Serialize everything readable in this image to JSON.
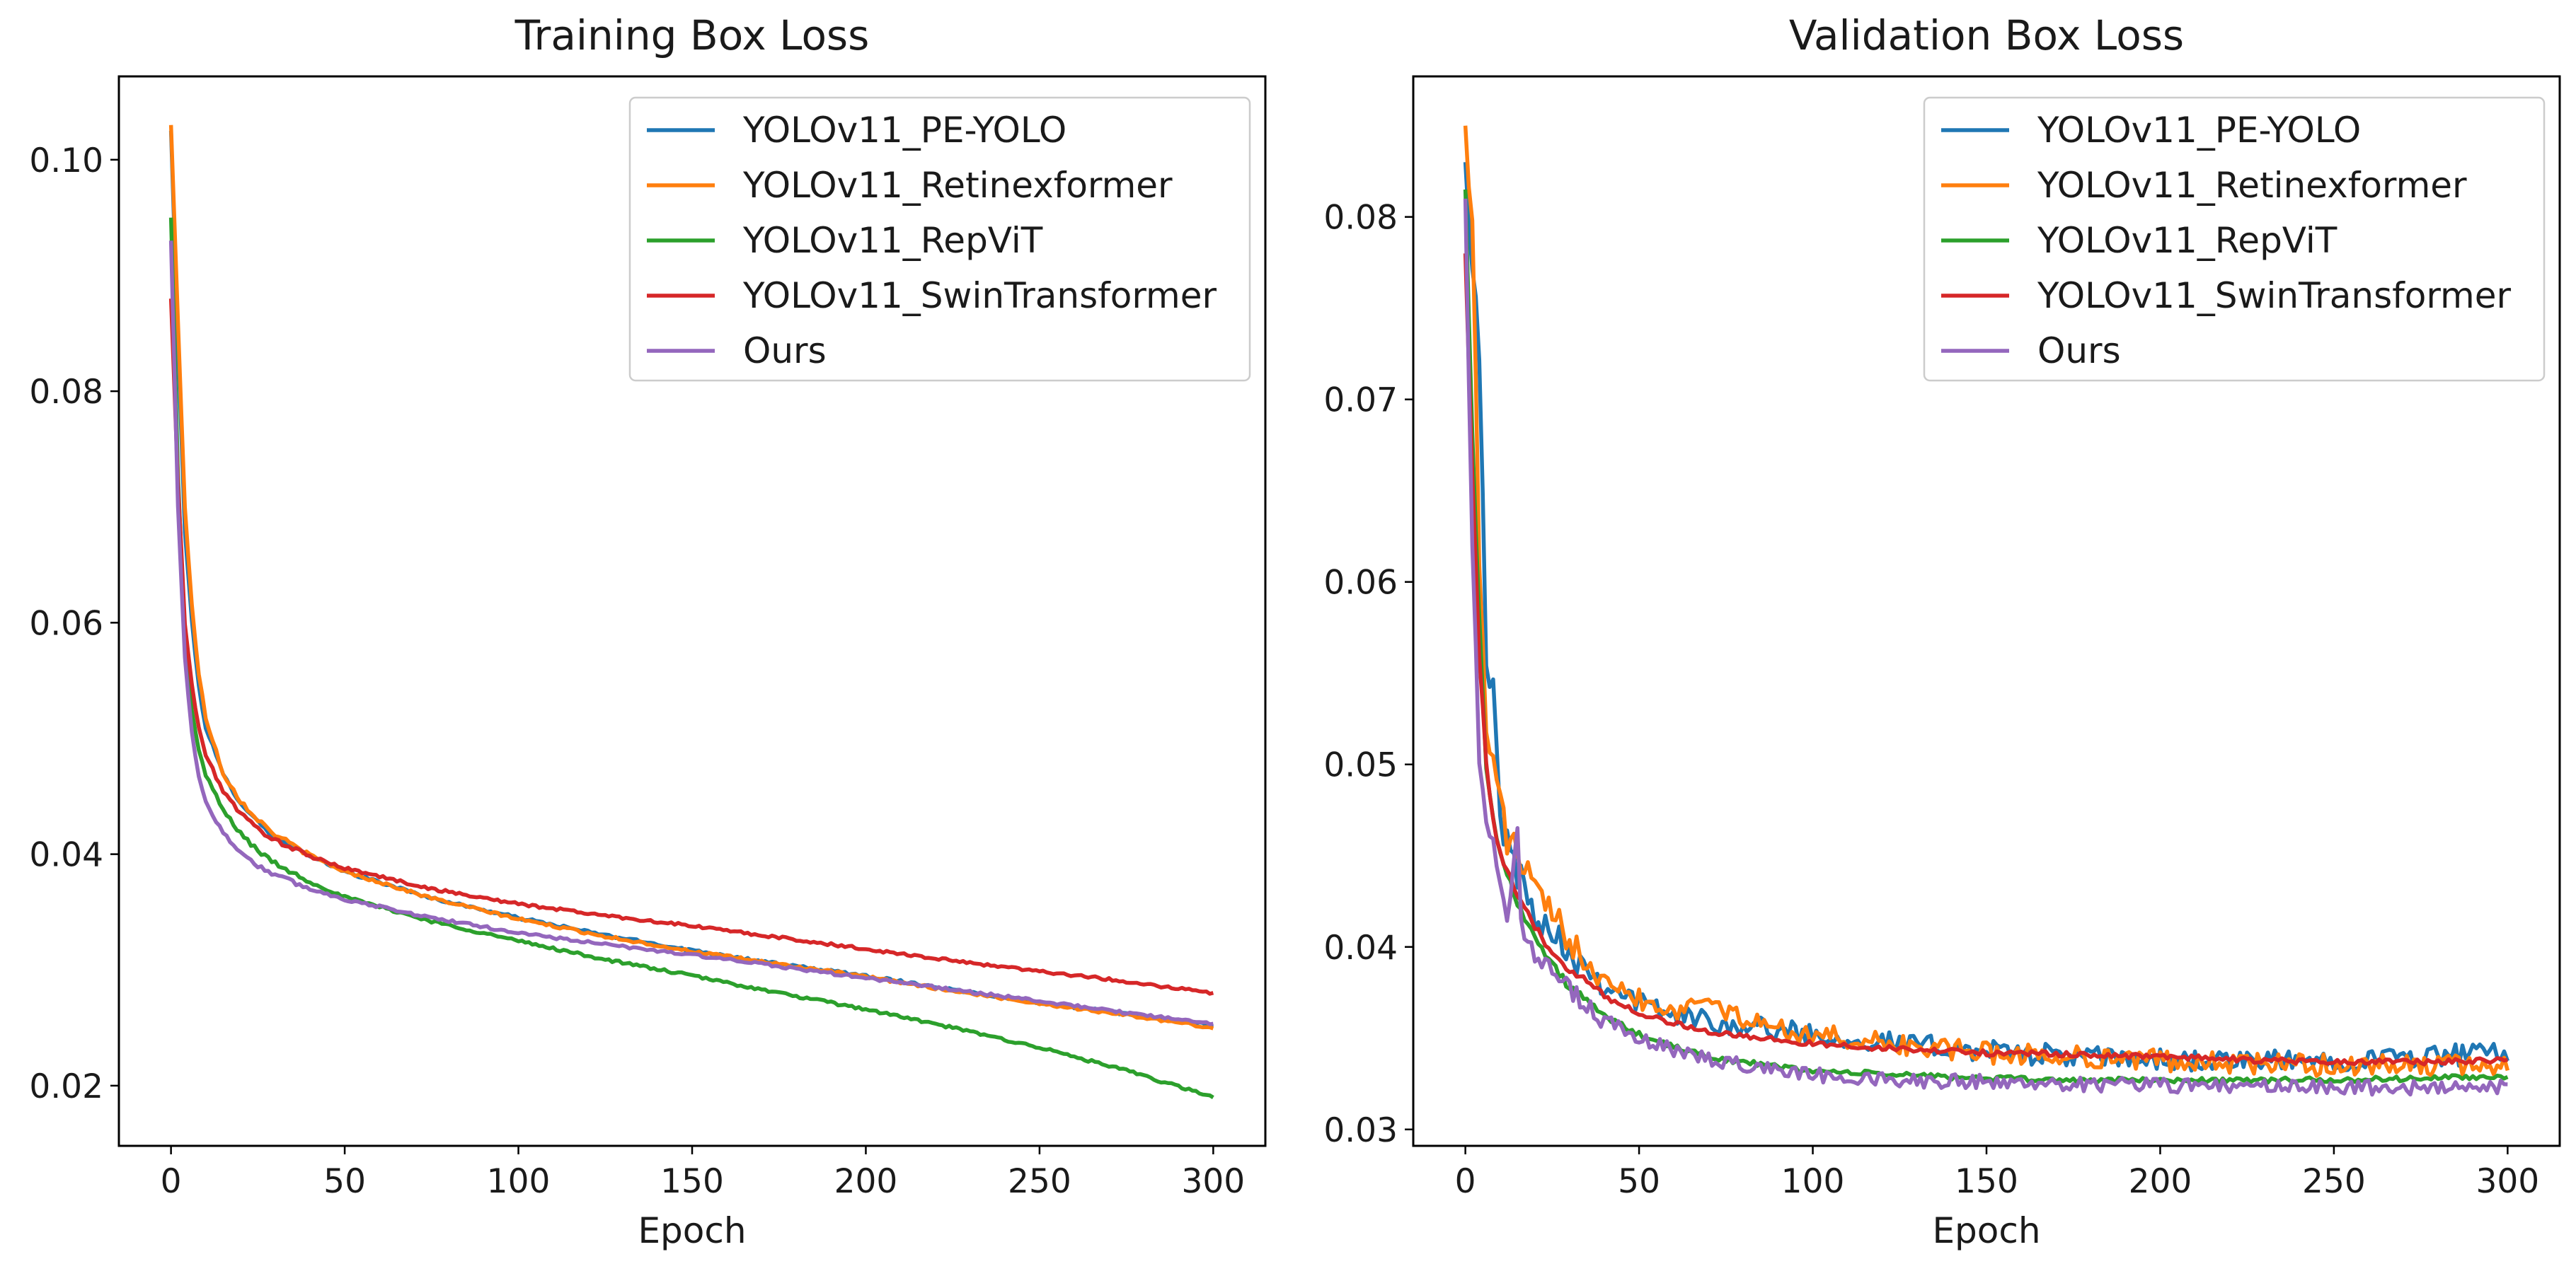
{
  "chart_data": [
    {
      "type": "line",
      "title": "Training Box Loss",
      "xlabel": "Epoch",
      "ylabel": "",
      "xlim": [
        -15,
        315
      ],
      "ylim": [
        0.0148,
        0.1072
      ],
      "xticks": [
        "0",
        "50",
        "100",
        "150",
        "200",
        "250",
        "300"
      ],
      "yticks": [
        "0.02",
        "0.04",
        "0.06",
        "0.08",
        "0.10"
      ],
      "legend": "top-right",
      "series": [
        {
          "name": "YOLOv11_PE-YOLO",
          "color": "#1f77b4",
          "noise": 0.00012,
          "points": [
            [
              0,
              0.1025
            ],
            [
              2,
              0.084
            ],
            [
              4,
              0.068
            ],
            [
              6,
              0.06
            ],
            [
              8,
              0.0545
            ],
            [
              10,
              0.051
            ],
            [
              15,
              0.0468
            ],
            [
              20,
              0.0445
            ],
            [
              25,
              0.0428
            ],
            [
              30,
              0.0415
            ],
            [
              40,
              0.0398
            ],
            [
              50,
              0.0385
            ],
            [
              75,
              0.0362
            ],
            [
              100,
              0.0345
            ],
            [
              125,
              0.033
            ],
            [
              150,
              0.0317
            ],
            [
              175,
              0.0305
            ],
            [
              200,
              0.0295
            ],
            [
              225,
              0.0283
            ],
            [
              250,
              0.0272
            ],
            [
              275,
              0.0262
            ],
            [
              300,
              0.0252
            ]
          ]
        },
        {
          "name": "YOLOv11_Retinexformer",
          "color": "#ff7f0e",
          "noise": 0.00012,
          "points": [
            [
              0,
              0.103
            ],
            [
              2,
              0.086
            ],
            [
              4,
              0.07
            ],
            [
              6,
              0.0615
            ],
            [
              8,
              0.0555
            ],
            [
              10,
              0.0518
            ],
            [
              15,
              0.047
            ],
            [
              20,
              0.0446
            ],
            [
              25,
              0.043
            ],
            [
              30,
              0.0417
            ],
            [
              40,
              0.0399
            ],
            [
              50,
              0.0385
            ],
            [
              75,
              0.0362
            ],
            [
              100,
              0.0344
            ],
            [
              125,
              0.0329
            ],
            [
              150,
              0.0316
            ],
            [
              175,
              0.0305
            ],
            [
              200,
              0.0294
            ],
            [
              225,
              0.0282
            ],
            [
              250,
              0.0271
            ],
            [
              275,
              0.0261
            ],
            [
              300,
              0.025
            ]
          ]
        },
        {
          "name": "YOLOv11_RepViT",
          "color": "#2ca02c",
          "noise": 0.00012,
          "points": [
            [
              0,
              0.095
            ],
            [
              2,
              0.073
            ],
            [
              4,
              0.058
            ],
            [
              6,
              0.0525
            ],
            [
              8,
              0.049
            ],
            [
              10,
              0.0468
            ],
            [
              15,
              0.0438
            ],
            [
              20,
              0.0418
            ],
            [
              25,
              0.0403
            ],
            [
              30,
              0.0392
            ],
            [
              40,
              0.0376
            ],
            [
              50,
              0.0363
            ],
            [
              75,
              0.0342
            ],
            [
              100,
              0.0325
            ],
            [
              125,
              0.0309
            ],
            [
              150,
              0.0295
            ],
            [
              175,
              0.028
            ],
            [
              200,
              0.0266
            ],
            [
              225,
              0.025
            ],
            [
              250,
              0.0233
            ],
            [
              275,
              0.0213
            ],
            [
              300,
              0.019
            ]
          ]
        },
        {
          "name": "YOLOv11_SwinTransformer",
          "color": "#d62728",
          "noise": 0.00012,
          "points": [
            [
              0,
              0.088
            ],
            [
              2,
              0.072
            ],
            [
              4,
              0.06
            ],
            [
              6,
              0.0545
            ],
            [
              8,
              0.051
            ],
            [
              10,
              0.0485
            ],
            [
              15,
              0.0455
            ],
            [
              20,
              0.0435
            ],
            [
              25,
              0.0422
            ],
            [
              30,
              0.0412
            ],
            [
              40,
              0.0398
            ],
            [
              50,
              0.0388
            ],
            [
              75,
              0.037
            ],
            [
              100,
              0.0357
            ],
            [
              125,
              0.0347
            ],
            [
              150,
              0.0338
            ],
            [
              175,
              0.0328
            ],
            [
              200,
              0.0318
            ],
            [
              225,
              0.0308
            ],
            [
              250,
              0.0299
            ],
            [
              275,
              0.029
            ],
            [
              300,
              0.028
            ]
          ]
        },
        {
          "name": "Ours",
          "color": "#9467bd",
          "noise": 0.00012,
          "points": [
            [
              0,
              0.093
            ],
            [
              2,
              0.07
            ],
            [
              4,
              0.057
            ],
            [
              6,
              0.0505
            ],
            [
              8,
              0.0468
            ],
            [
              10,
              0.0445
            ],
            [
              15,
              0.0418
            ],
            [
              20,
              0.0402
            ],
            [
              25,
              0.039
            ],
            [
              30,
              0.0382
            ],
            [
              40,
              0.037
            ],
            [
              50,
              0.0361
            ],
            [
              75,
              0.0345
            ],
            [
              100,
              0.0332
            ],
            [
              125,
              0.0322
            ],
            [
              150,
              0.0313
            ],
            [
              175,
              0.0303
            ],
            [
              200,
              0.0293
            ],
            [
              225,
              0.0283
            ],
            [
              250,
              0.0273
            ],
            [
              275,
              0.0263
            ],
            [
              300,
              0.0253
            ]
          ]
        }
      ]
    },
    {
      "type": "line",
      "title": "Validation Box Loss",
      "xlabel": "Epoch",
      "ylabel": "",
      "xlim": [
        -15,
        315
      ],
      "ylim": [
        0.0291,
        0.0877
      ],
      "xticks": [
        "0",
        "50",
        "100",
        "150",
        "200",
        "250",
        "300"
      ],
      "yticks": [
        "0.03",
        "0.04",
        "0.05",
        "0.06",
        "0.07",
        "0.08"
      ],
      "legend": "top-right",
      "series": [
        {
          "name": "YOLOv11_PE-YOLO",
          "color": "#1f77b4",
          "noise": 0.0006,
          "points": [
            [
              0,
              0.083
            ],
            [
              2,
              0.078
            ],
            [
              4,
              0.073
            ],
            [
              6,
              0.055
            ],
            [
              8,
              0.054
            ],
            [
              10,
              0.047
            ],
            [
              12,
              0.046
            ],
            [
              15,
              0.044
            ],
            [
              20,
              0.042
            ],
            [
              25,
              0.041
            ],
            [
              30,
              0.0398
            ],
            [
              40,
              0.038
            ],
            [
              50,
              0.037
            ],
            [
              60,
              0.0363
            ],
            [
              75,
              0.0358
            ],
            [
              100,
              0.0352
            ],
            [
              125,
              0.0347
            ],
            [
              150,
              0.0343
            ],
            [
              175,
              0.034
            ],
            [
              200,
              0.0338
            ],
            [
              225,
              0.0337
            ],
            [
              250,
              0.0338
            ],
            [
              275,
              0.034
            ],
            [
              300,
              0.0342
            ]
          ]
        },
        {
          "name": "YOLOv11_Retinexformer",
          "color": "#ff7f0e",
          "noise": 0.0006,
          "points": [
            [
              0,
              0.085
            ],
            [
              2,
              0.08
            ],
            [
              4,
              0.061
            ],
            [
              6,
              0.052
            ],
            [
              8,
              0.05
            ],
            [
              10,
              0.048
            ],
            [
              12,
              0.046
            ],
            [
              15,
              0.045
            ],
            [
              18,
              0.044
            ],
            [
              20,
              0.043
            ],
            [
              25,
              0.0415
            ],
            [
              30,
              0.0405
            ],
            [
              40,
              0.0385
            ],
            [
              50,
              0.0372
            ],
            [
              60,
              0.0365
            ],
            [
              73,
              0.0375
            ],
            [
              75,
              0.0362
            ],
            [
              100,
              0.0352
            ],
            [
              125,
              0.0346
            ],
            [
              150,
              0.0342
            ],
            [
              175,
              0.034
            ],
            [
              200,
              0.0338
            ],
            [
              225,
              0.0336
            ],
            [
              250,
              0.0335
            ],
            [
              275,
              0.0335
            ],
            [
              300,
              0.0335
            ]
          ]
        },
        {
          "name": "YOLOv11_RepViT",
          "color": "#2ca02c",
          "noise": 0.00015,
          "points": [
            [
              0,
              0.0815
            ],
            [
              2,
              0.068
            ],
            [
              4,
              0.058
            ],
            [
              6,
              0.05
            ],
            [
              8,
              0.047
            ],
            [
              10,
              0.045
            ],
            [
              15,
              0.0425
            ],
            [
              20,
              0.0405
            ],
            [
              25,
              0.039
            ],
            [
              30,
              0.0378
            ],
            [
              40,
              0.0362
            ],
            [
              50,
              0.0352
            ],
            [
              60,
              0.0345
            ],
            [
              75,
              0.0338
            ],
            [
              100,
              0.0332
            ],
            [
              125,
              0.033
            ],
            [
              150,
              0.0328
            ],
            [
              175,
              0.0327
            ],
            [
              200,
              0.0327
            ],
            [
              225,
              0.0327
            ],
            [
              250,
              0.0327
            ],
            [
              275,
              0.0328
            ],
            [
              300,
              0.0329
            ]
          ]
        },
        {
          "name": "YOLOv11_SwinTransformer",
          "color": "#d62728",
          "noise": 0.00015,
          "points": [
            [
              0,
              0.078
            ],
            [
              2,
              0.066
            ],
            [
              4,
              0.056
            ],
            [
              6,
              0.05
            ],
            [
              8,
              0.047
            ],
            [
              10,
              0.045
            ],
            [
              15,
              0.0428
            ],
            [
              20,
              0.041
            ],
            [
              25,
              0.0398
            ],
            [
              30,
              0.0388
            ],
            [
              40,
              0.0373
            ],
            [
              50,
              0.0364
            ],
            [
              60,
              0.0358
            ],
            [
              75,
              0.0352
            ],
            [
              100,
              0.0347
            ],
            [
              125,
              0.0344
            ],
            [
              150,
              0.0342
            ],
            [
              175,
              0.0341
            ],
            [
              200,
              0.034
            ],
            [
              225,
              0.0338
            ],
            [
              250,
              0.0337
            ],
            [
              275,
              0.0337
            ],
            [
              300,
              0.0338
            ]
          ]
        },
        {
          "name": "Ours",
          "color": "#9467bd",
          "noise": 0.0004,
          "points": [
            [
              0,
              0.081
            ],
            [
              2,
              0.062
            ],
            [
              4,
              0.05
            ],
            [
              6,
              0.047
            ],
            [
              8,
              0.046
            ],
            [
              10,
              0.044
            ],
            [
              12,
              0.042
            ],
            [
              15,
              0.046
            ],
            [
              16,
              0.041
            ],
            [
              20,
              0.0395
            ],
            [
              25,
              0.0385
            ],
            [
              30,
              0.0375
            ],
            [
              40,
              0.036
            ],
            [
              50,
              0.035
            ],
            [
              60,
              0.0343
            ],
            [
              75,
              0.0337
            ],
            [
              100,
              0.033
            ],
            [
              125,
              0.0327
            ],
            [
              150,
              0.0326
            ],
            [
              175,
              0.0325
            ],
            [
              200,
              0.0324
            ],
            [
              225,
              0.0324
            ],
            [
              250,
              0.0323
            ],
            [
              275,
              0.0323
            ],
            [
              300,
              0.0323
            ]
          ]
        }
      ]
    }
  ]
}
